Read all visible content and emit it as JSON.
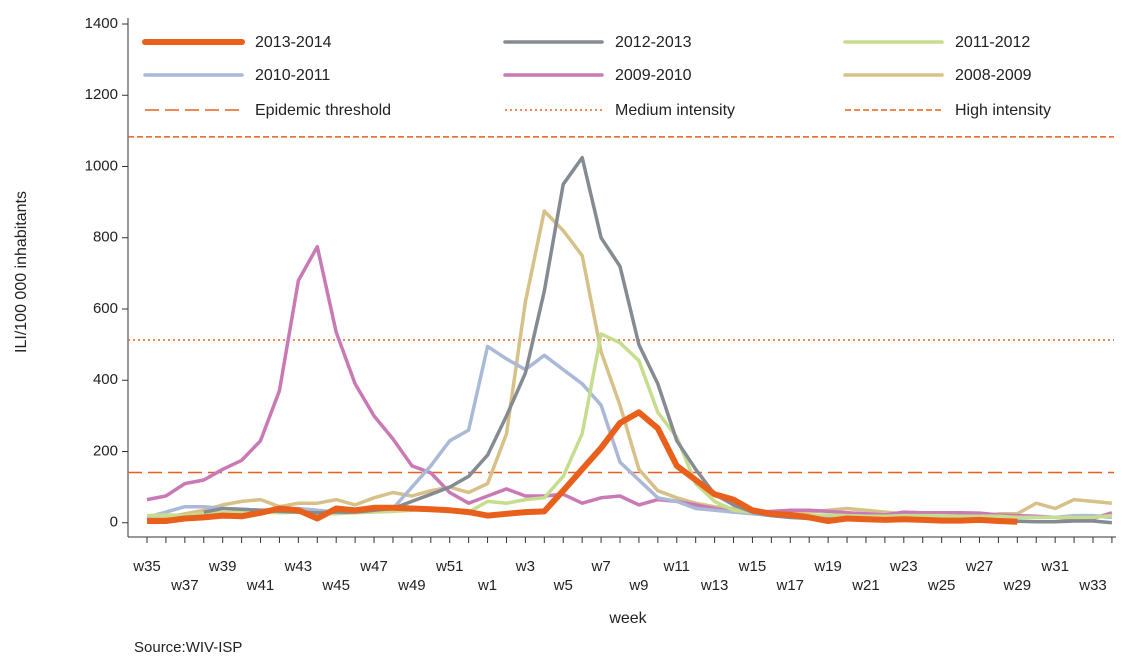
{
  "chart_data": {
    "type": "line",
    "y_label": "ILI/100 000 inhabitants",
    "x_label": "week",
    "source": "Source:WIV-ISP",
    "categories": [
      "w35",
      null,
      "w37",
      null,
      "w39",
      null,
      "w41",
      null,
      "w43",
      null,
      "w45",
      null,
      "w47",
      null,
      "w49",
      null,
      "w51",
      null,
      "w1",
      null,
      "w3",
      null,
      "w5",
      null,
      "w7",
      null,
      "w9",
      null,
      "w11",
      null,
      "w13",
      null,
      "w15",
      null,
      "w17",
      null,
      "w19",
      null,
      "w21",
      null,
      "w23",
      null,
      "w25",
      null,
      "w27",
      null,
      "w29",
      null,
      "w31",
      null,
      "w33",
      null
    ],
    "ylim": [
      -40,
      1400
    ],
    "yticks": [
      0,
      200,
      400,
      600,
      800,
      1000,
      1200,
      1400
    ],
    "series": [
      {
        "name": "2013-2014",
        "color": "#e8601c",
        "width": 6,
        "values": [
          5,
          5,
          12,
          15,
          20,
          18,
          28,
          40,
          35,
          12,
          40,
          35,
          42,
          42,
          40,
          38,
          35,
          30,
          20,
          25,
          30,
          32,
          90,
          150,
          210,
          280,
          310,
          265,
          160,
          120,
          80,
          65,
          35,
          25,
          22,
          15,
          5,
          12,
          10,
          8,
          10,
          8,
          6,
          6,
          8,
          5,
          3,
          null,
          null,
          null,
          null,
          null
        ]
      },
      {
        "name": "2012-2013",
        "color": "#858b92",
        "width": 3.5,
        "values": [
          null,
          null,
          null,
          30,
          40,
          38,
          35,
          32,
          30,
          28,
          30,
          30,
          35,
          40,
          60,
          80,
          100,
          130,
          190,
          300,
          420,
          650,
          950,
          1025,
          800,
          720,
          500,
          390,
          230,
          150,
          80,
          50,
          30,
          20,
          15,
          12,
          10,
          10,
          8,
          8,
          8,
          6,
          6,
          5,
          5,
          5,
          4,
          3,
          3,
          5,
          5,
          0
        ]
      },
      {
        "name": "2011-2012",
        "color": "#c5dd8d",
        "width": 3.5,
        "values": [
          20,
          22,
          20,
          25,
          28,
          30,
          30,
          28,
          30,
          25,
          25,
          28,
          30,
          32,
          35,
          40,
          35,
          30,
          60,
          55,
          65,
          70,
          130,
          250,
          530,
          505,
          455,
          310,
          240,
          110,
          60,
          35,
          30,
          22,
          20,
          20,
          22,
          20,
          18,
          18,
          20,
          20,
          20,
          18,
          18,
          18,
          15,
          15,
          15,
          15,
          15,
          20
        ]
      },
      {
        "name": "2010-2011",
        "color": "#a9b9d7",
        "width": 3.5,
        "values": [
          15,
          30,
          45,
          45,
          40,
          38,
          35,
          38,
          40,
          35,
          30,
          35,
          38,
          40,
          100,
          160,
          230,
          260,
          495,
          460,
          430,
          470,
          430,
          390,
          330,
          170,
          120,
          70,
          60,
          40,
          35,
          30,
          25,
          20,
          15,
          15,
          15,
          15,
          15,
          15,
          15,
          15,
          15,
          15,
          15,
          15,
          15,
          15,
          15,
          20,
          20,
          15
        ]
      },
      {
        "name": "2009-2010",
        "color": "#c97ab5",
        "width": 3.5,
        "values": [
          65,
          75,
          110,
          120,
          150,
          175,
          230,
          370,
          680,
          775,
          535,
          390,
          300,
          235,
          160,
          140,
          85,
          55,
          75,
          95,
          75,
          75,
          80,
          55,
          70,
          75,
          50,
          65,
          60,
          50,
          40,
          30,
          30,
          32,
          35,
          35,
          32,
          28,
          25,
          22,
          30,
          28,
          28,
          28,
          27,
          22,
          20,
          18,
          15,
          12,
          12,
          28
        ]
      },
      {
        "name": "2008-2009",
        "color": "#d8c189",
        "width": 3.5,
        "values": [
          20,
          15,
          25,
          35,
          50,
          60,
          65,
          45,
          55,
          55,
          65,
          50,
          70,
          85,
          75,
          90,
          100,
          85,
          110,
          250,
          620,
          875,
          820,
          750,
          480,
          330,
          150,
          90,
          70,
          55,
          45,
          40,
          30,
          25,
          28,
          30,
          35,
          40,
          35,
          30,
          25,
          25,
          25,
          20,
          18,
          25,
          25,
          55,
          40,
          65,
          60,
          55
        ]
      }
    ],
    "thresholds": [
      {
        "name": "Epidemic threshold",
        "value": 141,
        "color": "#e8601c",
        "dash": "14 6"
      },
      {
        "name": "Medium intensity",
        "value": 513,
        "color": "#e8601c",
        "dash": "2 3"
      },
      {
        "name": "High intensity",
        "value": 1083,
        "color": "#e8601c",
        "dash": "6 3"
      }
    ]
  }
}
